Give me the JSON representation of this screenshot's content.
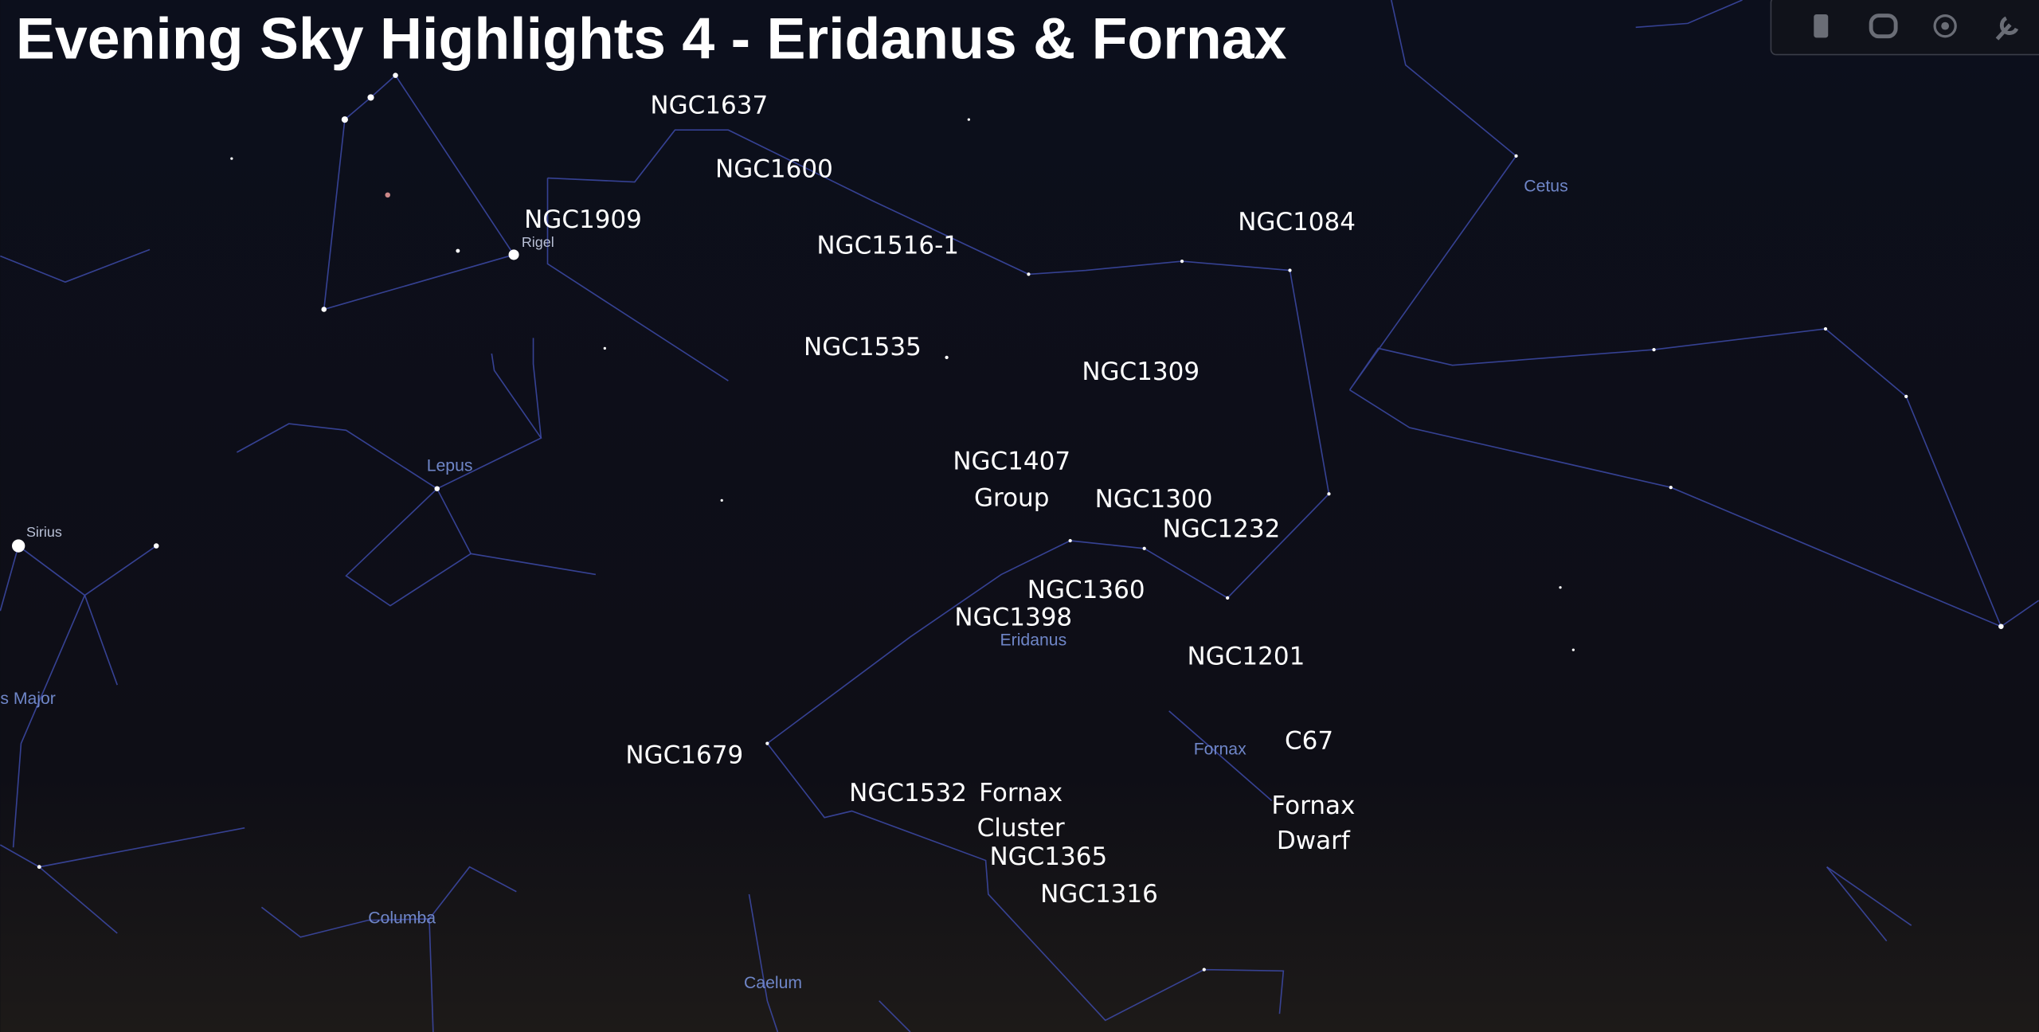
{
  "title": "Evening Sky Highlights 4 - Eridanus & Fornax",
  "objects": [
    "NGC1637",
    "NGC1600",
    "NGC1909",
    "NGC1516-1",
    "NGC1084",
    "NGC1535",
    "NGC1309",
    "NGC1407",
    "Group",
    "NGC1300",
    "NGC1232",
    "NGC1360",
    "NGC1398",
    "NGC1201",
    "NGC1679",
    "C67",
    "NGC1532",
    "Fornax",
    "Cluster",
    "Fornax",
    "Dwarf",
    "NGC1365",
    "NGC1316"
  ],
  "constellations": [
    "Cetus",
    "Lepus",
    "Eridanus",
    "Fornax",
    "Columba",
    "Caelum",
    "s Major"
  ],
  "stars": [
    "Rigel",
    "Sirius"
  ]
}
